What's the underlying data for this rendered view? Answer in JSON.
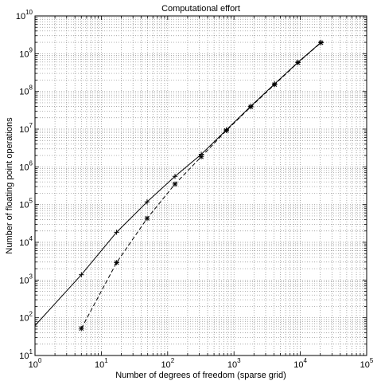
{
  "chart_data": {
    "type": "line",
    "title": "Computational effort",
    "xlabel": "Number of degrees of freedom (sparse grid)",
    "ylabel": "Number of floating point operations",
    "x_scale": "log",
    "y_scale": "log",
    "xlim": [
      1,
      100000
    ],
    "ylim": [
      10,
      10000000000
    ],
    "grid": "major and minor, dotted",
    "legend": "none",
    "x_ticks": [
      {
        "value": 1,
        "base": "10",
        "exp": "0"
      },
      {
        "value": 10,
        "base": "10",
        "exp": "1"
      },
      {
        "value": 100,
        "base": "10",
        "exp": "2"
      },
      {
        "value": 1000,
        "base": "10",
        "exp": "3"
      },
      {
        "value": 10000,
        "base": "10",
        "exp": "4"
      },
      {
        "value": 100000,
        "base": "10",
        "exp": "5"
      }
    ],
    "y_ticks": [
      {
        "value": 10,
        "base": "10",
        "exp": "1"
      },
      {
        "value": 100,
        "base": "10",
        "exp": "2"
      },
      {
        "value": 1000,
        "base": "10",
        "exp": "3"
      },
      {
        "value": 10000,
        "base": "10",
        "exp": "4"
      },
      {
        "value": 100000,
        "base": "10",
        "exp": "5"
      },
      {
        "value": 1000000,
        "base": "10",
        "exp": "6"
      },
      {
        "value": 10000000,
        "base": "10",
        "exp": "7"
      },
      {
        "value": 100000000,
        "base": "10",
        "exp": "8"
      },
      {
        "value": 1000000000,
        "base": "10",
        "exp": "9"
      },
      {
        "value": 10000000000,
        "base": "10",
        "exp": "10"
      }
    ],
    "series": [
      {
        "style": "solid",
        "color": "#000000",
        "line_x": [
          1,
          5,
          17,
          49,
          129,
          321,
          769,
          1793,
          4097,
          9217,
          20481
        ],
        "line_y": [
          62,
          1380,
          18500,
          118000,
          560000,
          2150000,
          9600000,
          40500000,
          158000000,
          590000000,
          2000000000
        ],
        "marker_x": [
          5,
          17,
          49,
          129,
          321,
          769,
          1793,
          4097,
          9217,
          20481
        ],
        "marker_y": [
          1380,
          18500,
          118000,
          560000,
          2150000,
          9600000,
          40500000,
          158000000,
          590000000,
          2000000000
        ],
        "marker": "plus"
      },
      {
        "style": "dashed",
        "color": "#000000",
        "line_x": [
          5,
          17,
          49,
          129,
          321,
          769,
          1793,
          4097,
          9217,
          20481
        ],
        "line_y": [
          52,
          2900,
          43000,
          350000,
          1850000,
          9200000,
          39000000,
          152000000,
          580000000,
          1950000000
        ],
        "marker_x": [
          5,
          17,
          49,
          129,
          321,
          769,
          1793,
          4097,
          9217,
          20481
        ],
        "marker_y": [
          52,
          2900,
          43000,
          350000,
          1850000,
          9200000,
          39000000,
          152000000,
          580000000,
          1950000000
        ],
        "marker": "star"
      }
    ]
  }
}
